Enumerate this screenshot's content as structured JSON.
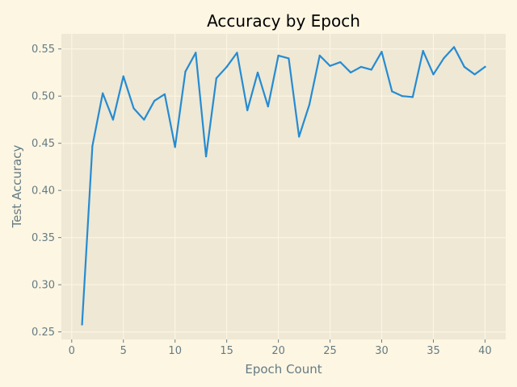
{
  "chart_data": {
    "type": "line",
    "title": "Accuracy by Epoch",
    "xlabel": "Epoch Count",
    "ylabel": "Test Accuracy",
    "xlim": [
      -1,
      42
    ],
    "ylim": [
      0.242,
      0.566
    ],
    "xticks": [
      0,
      5,
      10,
      15,
      20,
      25,
      30,
      35,
      40
    ],
    "yticks": [
      0.25,
      0.3,
      0.35,
      0.4,
      0.45,
      0.5,
      0.55
    ],
    "ytick_labels": [
      "0.25",
      "0.30",
      "0.35",
      "0.40",
      "0.45",
      "0.50",
      "0.55"
    ],
    "grid": true,
    "colors": {
      "background": "#fdf6e3",
      "plot_area": "#eee8d5",
      "grid": "#fdf6e3",
      "line": "#268bd2",
      "text": "#657b83"
    },
    "series": [
      {
        "x": [
          1,
          2,
          3,
          4,
          5,
          6,
          7,
          8,
          9,
          10,
          11,
          12,
          13,
          14,
          15,
          16,
          17,
          18,
          19,
          20,
          21,
          22,
          23,
          24,
          25,
          26,
          27,
          28,
          29,
          30,
          31,
          32,
          33,
          34,
          35,
          36,
          37,
          38,
          39,
          40
        ],
        "values": [
          0.258,
          0.447,
          0.503,
          0.475,
          0.521,
          0.487,
          0.475,
          0.495,
          0.502,
          0.446,
          0.526,
          0.546,
          0.436,
          0.519,
          0.531,
          0.546,
          0.485,
          0.525,
          0.489,
          0.543,
          0.54,
          0.457,
          0.491,
          0.543,
          0.532,
          0.536,
          0.525,
          0.531,
          0.528,
          0.547,
          0.505,
          0.5,
          0.499,
          0.548,
          0.523,
          0.54,
          0.552,
          0.531,
          0.523,
          0.531
        ]
      }
    ]
  }
}
